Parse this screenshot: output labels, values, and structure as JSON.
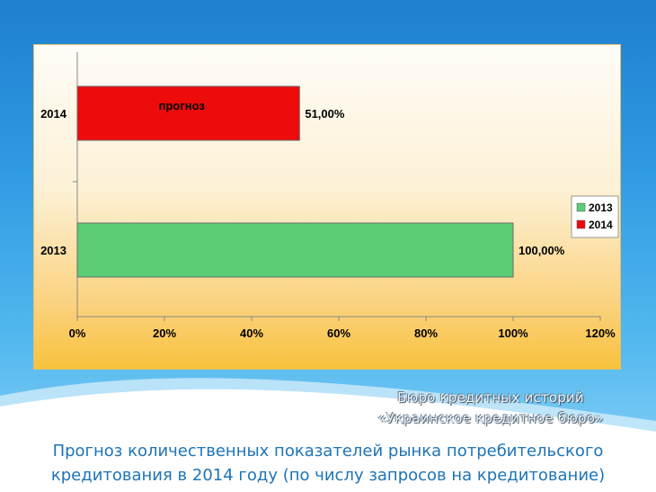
{
  "caption": {
    "credit_line1": "Бюро кредитных историй",
    "credit_line2": "«Украинское кредитное бюро»",
    "title_line1": "Прогноз количественных показателей рынка потребительского",
    "title_line2": "кредитования в 2014 году (по числу запросов на кредитование)"
  },
  "chart_data": {
    "type": "bar",
    "orientation": "horizontal",
    "categories": [
      "2013",
      "2014"
    ],
    "values": [
      100,
      51
    ],
    "value_labels": [
      "100,00%",
      "51,00%"
    ],
    "bar_colors": [
      "#5acd75",
      "#ee0b0b"
    ],
    "bar_annotations": [
      "",
      "прогноз"
    ],
    "x_ticks": [
      "0%",
      "20%",
      "40%",
      "60%",
      "80%",
      "100%",
      "120%"
    ],
    "xlim": [
      0,
      120
    ],
    "legend": {
      "position": "right",
      "entries": [
        {
          "label": "2013",
          "color": "#5acd75"
        },
        {
          "label": "2014",
          "color": "#ee0b0b"
        }
      ]
    },
    "grid": false
  }
}
